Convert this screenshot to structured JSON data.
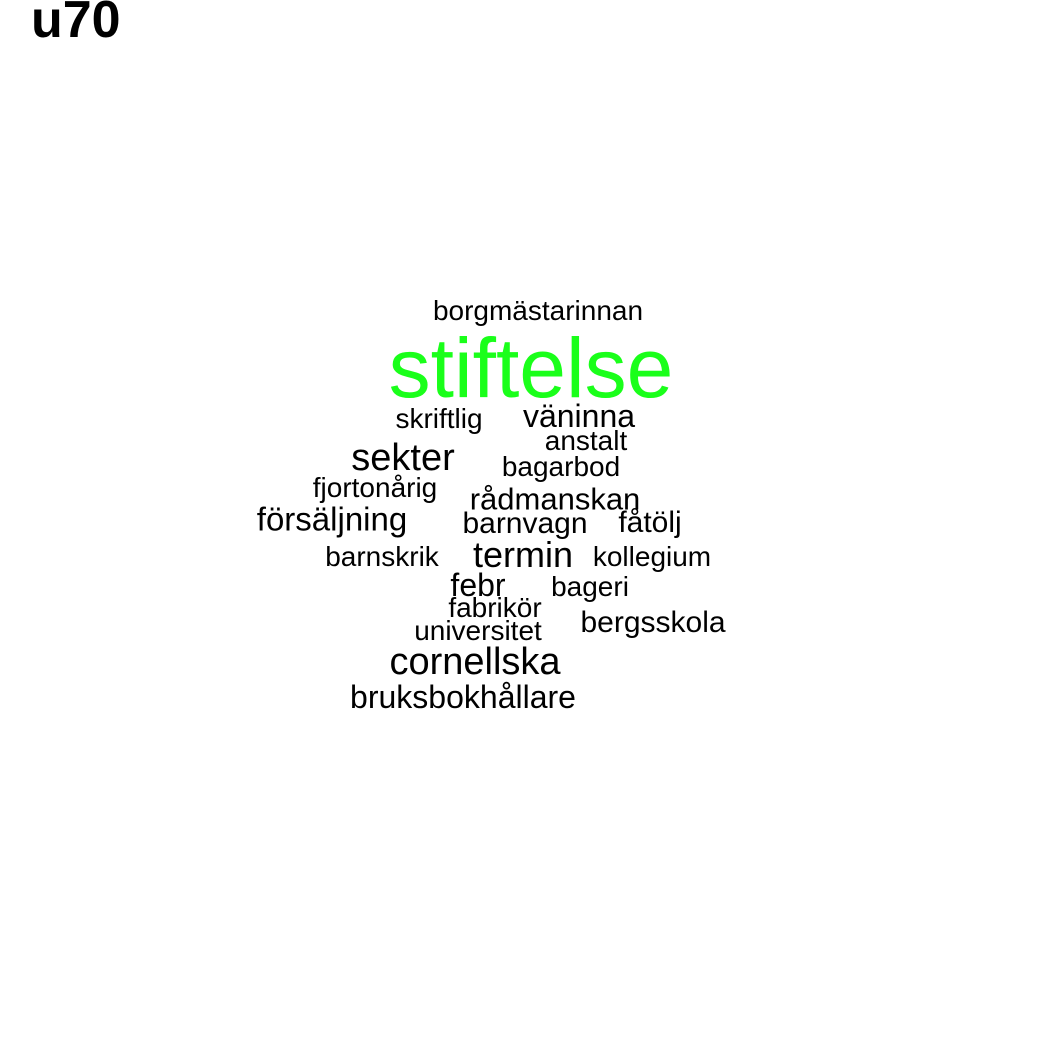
{
  "title": "u70",
  "word_cloud": {
    "words": [
      {
        "text": "borgmästarinnan",
        "color": "#000000"
      },
      {
        "text": "stiftelse",
        "color": "#1aff1a"
      },
      {
        "text": "skriftlig",
        "color": "#000000"
      },
      {
        "text": "väninna",
        "color": "#000000"
      },
      {
        "text": "anstalt",
        "color": "#000000"
      },
      {
        "text": "sekter",
        "color": "#000000"
      },
      {
        "text": "bagarbod",
        "color": "#000000"
      },
      {
        "text": "fjortonårig",
        "color": "#000000"
      },
      {
        "text": "rådmanskan",
        "color": "#000000"
      },
      {
        "text": "försäljning",
        "color": "#000000"
      },
      {
        "text": "barnvagn",
        "color": "#000000"
      },
      {
        "text": "fåtölj",
        "color": "#000000"
      },
      {
        "text": "barnskrik",
        "color": "#000000"
      },
      {
        "text": "termin",
        "color": "#000000"
      },
      {
        "text": "kollegium",
        "color": "#000000"
      },
      {
        "text": "febr",
        "color": "#000000"
      },
      {
        "text": "bageri",
        "color": "#000000"
      },
      {
        "text": "fabrikör",
        "color": "#000000"
      },
      {
        "text": "universitet",
        "color": "#000000"
      },
      {
        "text": "bergsskola",
        "color": "#000000"
      },
      {
        "text": "cornellska",
        "color": "#000000"
      },
      {
        "text": "bruksbokhållare",
        "color": "#000000"
      }
    ]
  }
}
